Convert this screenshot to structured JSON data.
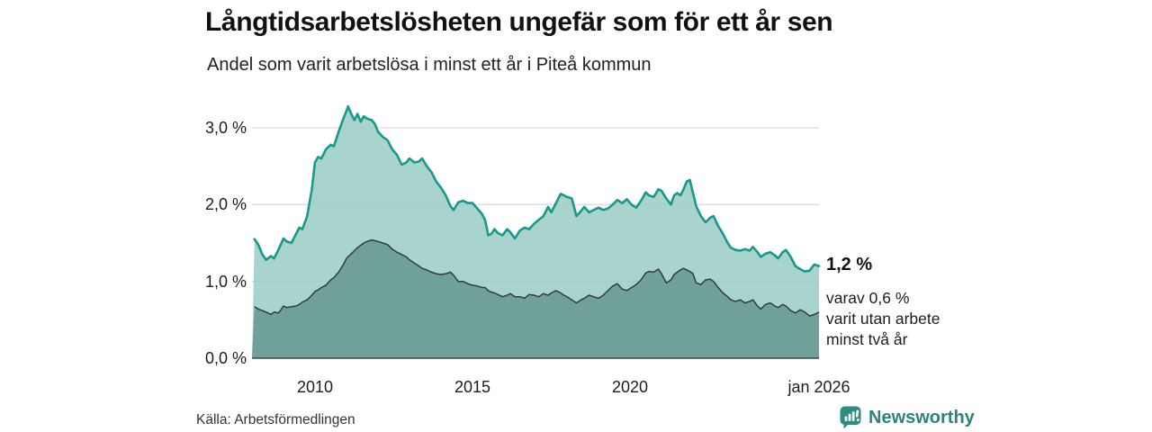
{
  "header": {
    "title": "Långtidsarbetslösheten ungefär som för ett år sen",
    "subtitle": "Andel som varit arbetslösa i minst ett år i Piteå kommun"
  },
  "annotation": {
    "value_label": "1,2 %",
    "detail_lines": [
      "varav 0,6 %",
      "varit utan arbete",
      "minst två år"
    ]
  },
  "footer": {
    "source": "Källa: Arbetsförmedlingen",
    "brand": "Newsworthy"
  },
  "colors": {
    "line_teal": "#18998a",
    "area_light": "#9ccdc6",
    "area_dark": "#6fa09a",
    "line_dark": "#303d3b",
    "gridline": "#d8dddd",
    "axis_line": "#414649",
    "brand_teal": "#2b837a"
  },
  "chart_data": {
    "type": "area",
    "title": "Långtidsarbetslösheten ungefär som för ett år sen",
    "subtitle": "Andel som varit arbetslösa i minst ett år i Piteå kommun",
    "xlabel": "",
    "ylabel": "",
    "x_range": [
      2008.0,
      2026.0
    ],
    "y_range": [
      0,
      3.3
    ],
    "grid": true,
    "legend_position": "none",
    "y_ticks": [
      {
        "label": "3,0 %",
        "value": 3.0
      },
      {
        "label": "2,0 %",
        "value": 2.0
      },
      {
        "label": "1,0 %",
        "value": 1.0
      },
      {
        "label": "0,0 %",
        "value": 0.0
      }
    ],
    "x_ticks": [
      {
        "label": "2010",
        "year": 2010
      },
      {
        "label": "2015",
        "year": 2015
      },
      {
        "label": "2020",
        "year": 2020
      },
      {
        "label": "jan 2026",
        "year": 2026
      }
    ],
    "x": [
      2008.08,
      2008.2,
      2008.33,
      2008.45,
      2008.6,
      2008.7,
      2008.85,
      2009.0,
      2009.1,
      2009.25,
      2009.4,
      2009.5,
      2009.6,
      2009.75,
      2009.9,
      2010.0,
      2010.1,
      2010.2,
      2010.35,
      2010.5,
      2010.6,
      2010.75,
      2010.9,
      2011.0,
      2011.05,
      2011.15,
      2011.25,
      2011.35,
      2011.45,
      2011.55,
      2011.65,
      2011.8,
      2011.9,
      2012.0,
      2012.15,
      2012.3,
      2012.45,
      2012.6,
      2012.75,
      2012.9,
      2013.0,
      2013.15,
      2013.3,
      2013.4,
      2013.55,
      2013.7,
      2013.85,
      2014.0,
      2014.15,
      2014.3,
      2014.4,
      2014.55,
      2014.7,
      2014.85,
      2015.0,
      2015.15,
      2015.3,
      2015.4,
      2015.5,
      2015.6,
      2015.7,
      2015.8,
      2015.95,
      2016.1,
      2016.2,
      2016.35,
      2016.5,
      2016.65,
      2016.8,
      2016.95,
      2017.1,
      2017.25,
      2017.4,
      2017.5,
      2017.65,
      2017.8,
      2017.9,
      2018.0,
      2018.15,
      2018.3,
      2018.45,
      2018.55,
      2018.7,
      2018.85,
      2019.0,
      2019.15,
      2019.3,
      2019.45,
      2019.6,
      2019.75,
      2019.9,
      2020.05,
      2020.2,
      2020.35,
      2020.5,
      2020.6,
      2020.75,
      2020.9,
      2021.0,
      2021.15,
      2021.3,
      2021.4,
      2021.5,
      2021.6,
      2021.7,
      2021.8,
      2021.9,
      2022.0,
      2022.1,
      2022.25,
      2022.4,
      2022.55,
      2022.65,
      2022.8,
      2022.95,
      2023.1,
      2023.2,
      2023.35,
      2023.5,
      2023.65,
      2023.8,
      2023.9,
      2024.05,
      2024.15,
      2024.3,
      2024.45,
      2024.6,
      2024.7,
      2024.85,
      2024.95,
      2025.1,
      2025.25,
      2025.4,
      2025.55,
      2025.7,
      2025.85,
      2026.0
    ],
    "series": [
      {
        "name": "Arbetslösa minst ett år",
        "end_value_pct": 1.2,
        "values": [
          1.55,
          1.48,
          1.35,
          1.28,
          1.33,
          1.3,
          1.42,
          1.56,
          1.52,
          1.5,
          1.62,
          1.7,
          1.68,
          1.85,
          2.2,
          2.55,
          2.62,
          2.6,
          2.72,
          2.78,
          2.76,
          2.95,
          3.12,
          3.22,
          3.28,
          3.18,
          3.1,
          3.18,
          3.08,
          3.15,
          3.12,
          3.1,
          3.05,
          2.95,
          2.88,
          2.84,
          2.72,
          2.65,
          2.52,
          2.55,
          2.6,
          2.55,
          2.56,
          2.6,
          2.5,
          2.42,
          2.3,
          2.22,
          2.12,
          1.98,
          1.93,
          2.03,
          2.05,
          2.02,
          2.02,
          1.95,
          1.88,
          1.8,
          1.6,
          1.62,
          1.68,
          1.63,
          1.6,
          1.68,
          1.64,
          1.56,
          1.66,
          1.7,
          1.68,
          1.75,
          1.8,
          1.85,
          1.97,
          1.9,
          2.02,
          2.14,
          2.12,
          2.1,
          2.08,
          1.85,
          1.92,
          1.97,
          1.9,
          1.93,
          1.96,
          1.93,
          1.95,
          2.0,
          2.06,
          2.02,
          2.07,
          2.0,
          1.96,
          2.05,
          2.16,
          2.12,
          2.1,
          2.2,
          2.18,
          2.08,
          2.0,
          2.12,
          2.15,
          2.12,
          2.2,
          2.3,
          2.32,
          2.15,
          1.98,
          1.85,
          1.77,
          1.83,
          1.85,
          1.72,
          1.62,
          1.5,
          1.44,
          1.41,
          1.4,
          1.42,
          1.4,
          1.45,
          1.38,
          1.32,
          1.36,
          1.38,
          1.34,
          1.3,
          1.38,
          1.41,
          1.32,
          1.2,
          1.16,
          1.13,
          1.14,
          1.22,
          1.2
        ]
      },
      {
        "name": "Arbetslösa minst två år",
        "end_value_pct": 0.6,
        "values": [
          0.67,
          0.64,
          0.62,
          0.6,
          0.57,
          0.6,
          0.59,
          0.68,
          0.66,
          0.67,
          0.68,
          0.7,
          0.73,
          0.76,
          0.82,
          0.87,
          0.89,
          0.92,
          0.95,
          1.02,
          1.05,
          1.12,
          1.22,
          1.3,
          1.32,
          1.36,
          1.4,
          1.44,
          1.47,
          1.5,
          1.52,
          1.54,
          1.53,
          1.52,
          1.5,
          1.48,
          1.42,
          1.38,
          1.35,
          1.32,
          1.28,
          1.24,
          1.2,
          1.17,
          1.15,
          1.12,
          1.1,
          1.09,
          1.1,
          1.12,
          1.08,
          1.0,
          1.0,
          0.97,
          0.95,
          0.94,
          0.92,
          0.92,
          0.88,
          0.86,
          0.85,
          0.83,
          0.8,
          0.82,
          0.84,
          0.8,
          0.8,
          0.78,
          0.83,
          0.82,
          0.8,
          0.84,
          0.82,
          0.85,
          0.88,
          0.85,
          0.82,
          0.8,
          0.76,
          0.72,
          0.76,
          0.78,
          0.82,
          0.8,
          0.78,
          0.82,
          0.88,
          0.94,
          0.97,
          0.9,
          0.88,
          0.92,
          0.96,
          1.02,
          1.11,
          1.13,
          1.12,
          1.16,
          1.1,
          0.98,
          1.02,
          1.09,
          1.12,
          1.15,
          1.17,
          1.15,
          1.13,
          1.1,
          0.98,
          0.96,
          1.02,
          1.03,
          1.0,
          0.92,
          0.85,
          0.8,
          0.76,
          0.74,
          0.76,
          0.72,
          0.74,
          0.76,
          0.68,
          0.64,
          0.7,
          0.72,
          0.68,
          0.66,
          0.7,
          0.68,
          0.62,
          0.59,
          0.63,
          0.6,
          0.55,
          0.57,
          0.6
        ]
      }
    ]
  }
}
